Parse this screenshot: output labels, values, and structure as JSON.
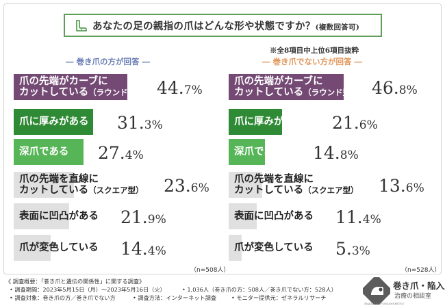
{
  "question": {
    "text": "あなたの足の親指の爪はどんな形や状態ですか？",
    "sub": "(複数回答可)"
  },
  "note": "※全8項目中上位6項目抜粋",
  "chart_data": [
    {
      "type": "bar",
      "title": "巻き爪の方が回答",
      "title_display": "― 巻き爪の方が回答 ―",
      "categories": [
        "爪の先端がカーブにカットしている（ラウンド型）",
        "爪に厚みがある",
        "深爪である",
        "爪の先端を直線にカットしている（スクエア型）",
        "表面に凹凸がある",
        "爪が変色している"
      ],
      "label_lines": [
        [
          "爪の先端がカーブに",
          "カットしている",
          "（ラウンド型）"
        ],
        [
          "爪に厚みがある",
          "",
          ""
        ],
        [
          "深爪である",
          "",
          ""
        ],
        [
          "爪の先端を直線に",
          "カットしている",
          "（スクエア型）"
        ],
        [
          "表面に凹凸がある",
          "",
          ""
        ],
        [
          "爪が変色している",
          "",
          ""
        ]
      ],
      "values": [
        44.7,
        31.3,
        27.4,
        23.6,
        21.9,
        14.4
      ],
      "value_int": [
        "44.",
        "31.",
        "27.",
        "23.",
        "21.",
        "14."
      ],
      "value_dec": [
        "7",
        "3",
        "4",
        "6",
        "9",
        "4"
      ],
      "unit": "%",
      "colors": [
        "#744a74",
        "#2f8a35",
        "#56b556",
        "#e0e0e0",
        "#e0e0e0",
        "#e0e0e0"
      ],
      "n_label": "（n=508人）",
      "xlim": [
        0,
        50
      ]
    },
    {
      "type": "bar",
      "title": "巻き爪でない方が回答",
      "title_display": "― 巻き爪でない方が回答 ―",
      "categories": [
        "爪の先端がカーブにカットしている（ラウンド型）",
        "爪に厚みがある",
        "深爪である",
        "爪の先端を直線にカットしている（スクエア型）",
        "表面に凹凸がある",
        "爪が変色している"
      ],
      "label_lines": [
        [
          "爪の先端がカーブに",
          "カットしている",
          "（ラウンド型）"
        ],
        [
          "爪に厚みがある",
          "",
          ""
        ],
        [
          "深爪である",
          "",
          ""
        ],
        [
          "爪の先端を直線に",
          "カットしている",
          "（スクエア型）"
        ],
        [
          "表面に凹凸がある",
          "",
          ""
        ],
        [
          "爪が変色している",
          "",
          ""
        ]
      ],
      "values": [
        46.8,
        21.6,
        14.8,
        13.6,
        11.4,
        5.3
      ],
      "value_int": [
        "46.",
        "21.",
        "14.",
        "13.",
        "11.",
        "5."
      ],
      "value_dec": [
        "8",
        "6",
        "8",
        "6",
        "4",
        "3"
      ],
      "unit": "%",
      "colors": [
        "#744a74",
        "#2f8a35",
        "#56b556",
        "#e0e0e0",
        "#e0e0e0",
        "#e0e0e0"
      ],
      "n_label": "（n=528人）",
      "xlim": [
        0,
        50
      ]
    }
  ],
  "footer": {
    "title": "《 調査概要：「巻き爪と遺伝の関係性」に関する調査》",
    "period": "• 調査期間：2023年5月15日（月）～2023年5月16日（火）",
    "count": "• 1,036人（巻き爪の方：508人／巻き爪でない方：528人）",
    "target": "• 調査対象：巻き爪の方／巻き爪でない方",
    "method": "• 調査方法：インターネット調査",
    "provider": "• モニター提供元：ゼネラルリサーチ"
  },
  "logo": {
    "title": "巻き爪・陥入爪",
    "sub": "治療の相談室",
    "url": "MAKIZUME-SODANSHITSU"
  }
}
